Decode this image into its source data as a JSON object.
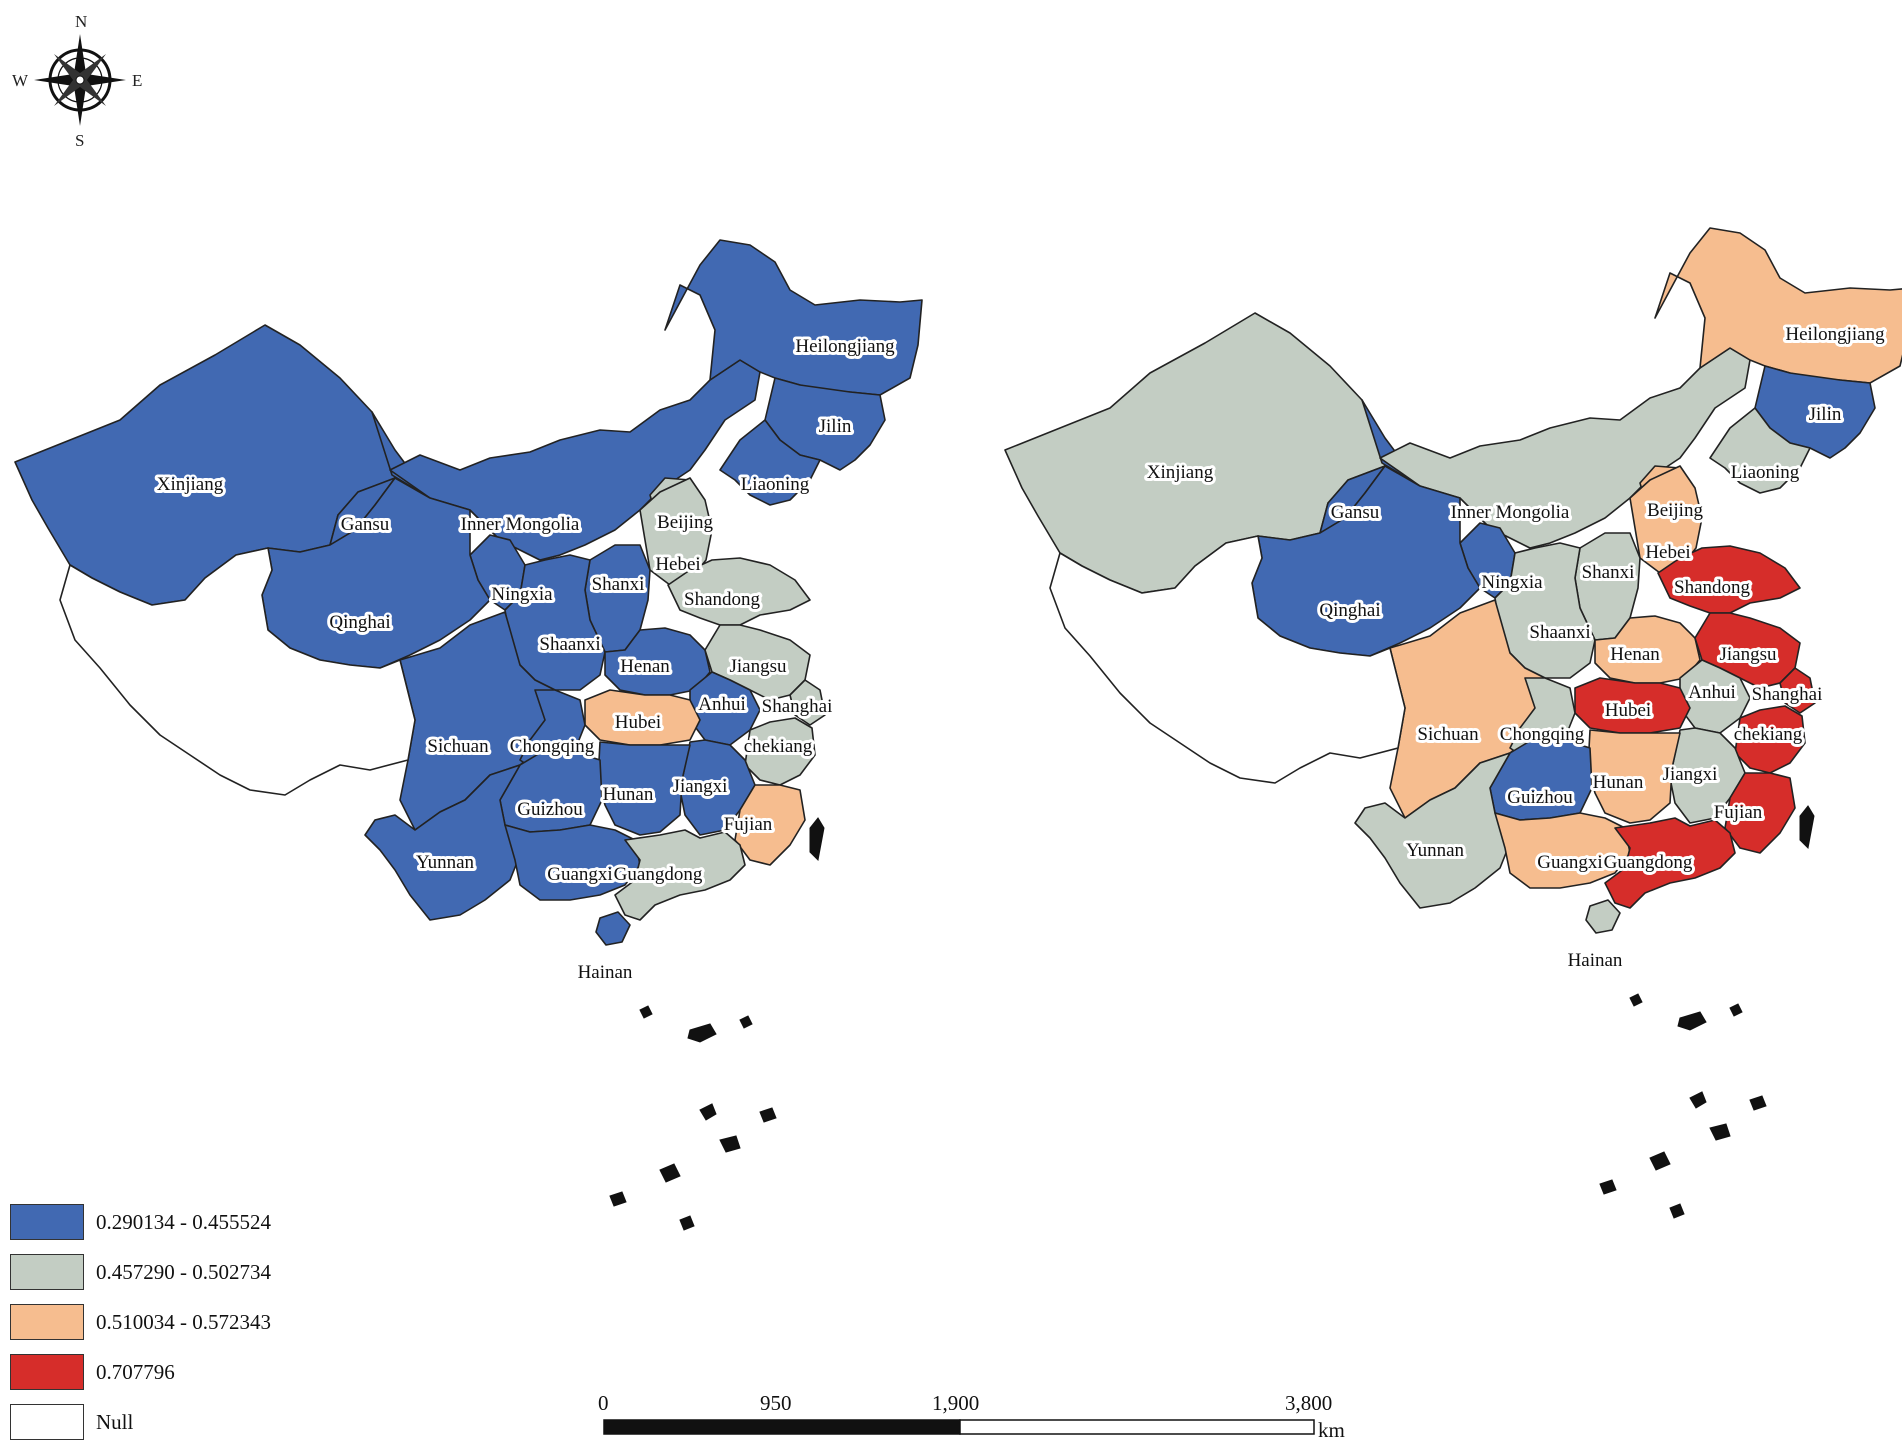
{
  "compass": {
    "n": "N",
    "s": "S",
    "e": "E",
    "w": "W"
  },
  "legend": [
    {
      "id": "c1",
      "label": "0.290134 - 0.455524",
      "color": "#4169b2"
    },
    {
      "id": "c2",
      "label": "0.457290 - 0.502734",
      "color": "#c3cdc3"
    },
    {
      "id": "c3",
      "label": "0.510034 - 0.572343",
      "color": "#f6bd8f"
    },
    {
      "id": "c4",
      "label": "0.707796",
      "color": "#d62d2a"
    },
    {
      "id": "null",
      "label": "Null",
      "color": "#ffffff"
    }
  ],
  "scale_bar": {
    "ticks": [
      "0",
      "950",
      "1,900",
      "3,800"
    ],
    "unit": "km"
  },
  "maps": {
    "left": {
      "provinces": [
        {
          "name": "Xinjiang",
          "class": "c1"
        },
        {
          "name": "Gansu",
          "class": "c1"
        },
        {
          "name": "Inner Mongolia",
          "class": "c1"
        },
        {
          "name": "Heilongjiang",
          "class": "c1"
        },
        {
          "name": "Jilin",
          "class": "c1"
        },
        {
          "name": "Liaoning",
          "class": "c1"
        },
        {
          "name": "Beijing",
          "class": "c2"
        },
        {
          "name": "Hebei",
          "class": "c2"
        },
        {
          "name": "Shandong",
          "class": "c2"
        },
        {
          "name": "Shanxi",
          "class": "c1"
        },
        {
          "name": "Ningxia",
          "class": "c1"
        },
        {
          "name": "Qinghai",
          "class": "c1"
        },
        {
          "name": "Shaanxi",
          "class": "c1"
        },
        {
          "name": "Henan",
          "class": "c1"
        },
        {
          "name": "Jiangsu",
          "class": "c2"
        },
        {
          "name": "Anhui",
          "class": "c1"
        },
        {
          "name": "Shanghai",
          "class": "c2"
        },
        {
          "name": "Hubei",
          "class": "c3"
        },
        {
          "name": "Sichuan",
          "class": "c1"
        },
        {
          "name": "Chongqing",
          "class": "c1"
        },
        {
          "name": "chekiang",
          "class": "c2"
        },
        {
          "name": "Jiangxi",
          "class": "c1"
        },
        {
          "name": "Hunan",
          "class": "c1"
        },
        {
          "name": "Guizhou",
          "class": "c1"
        },
        {
          "name": "Fujian",
          "class": "c3"
        },
        {
          "name": "Yunnan",
          "class": "c1"
        },
        {
          "name": "Guangxi",
          "class": "c1"
        },
        {
          "name": "Guangdong",
          "class": "c2"
        },
        {
          "name": "Hainan",
          "class": "c1"
        },
        {
          "name": "",
          "class": "null"
        }
      ]
    },
    "right": {
      "provinces": [
        {
          "name": "Xinjiang",
          "class": "c2"
        },
        {
          "name": "Gansu",
          "class": "c1"
        },
        {
          "name": "Inner Mongolia",
          "class": "c2"
        },
        {
          "name": "Heilongjiang",
          "class": "c3"
        },
        {
          "name": "Jilin",
          "class": "c1"
        },
        {
          "name": "Liaoning",
          "class": "c2"
        },
        {
          "name": "Beijing",
          "class": "c3"
        },
        {
          "name": "Hebei",
          "class": "c3"
        },
        {
          "name": "Shandong",
          "class": "c4"
        },
        {
          "name": "Shanxi",
          "class": "c2"
        },
        {
          "name": "Ningxia",
          "class": "c1"
        },
        {
          "name": "Qinghai",
          "class": "c1"
        },
        {
          "name": "Shaanxi",
          "class": "c2"
        },
        {
          "name": "Henan",
          "class": "c3"
        },
        {
          "name": "Jiangsu",
          "class": "c4"
        },
        {
          "name": "Anhui",
          "class": "c2"
        },
        {
          "name": "Shanghai",
          "class": "c4"
        },
        {
          "name": "Hubei",
          "class": "c4"
        },
        {
          "name": "Sichuan",
          "class": "c3"
        },
        {
          "name": "Chongqing",
          "class": "c2"
        },
        {
          "name": "chekiang",
          "class": "c4"
        },
        {
          "name": "Jiangxi",
          "class": "c2"
        },
        {
          "name": "Hunan",
          "class": "c3"
        },
        {
          "name": "Guizhou",
          "class": "c1"
        },
        {
          "name": "Fujian",
          "class": "c4"
        },
        {
          "name": "Yunnan",
          "class": "c2"
        },
        {
          "name": "Guangxi",
          "class": "c3"
        },
        {
          "name": "Guangdong",
          "class": "c4"
        },
        {
          "name": "Hainan",
          "class": "c2"
        },
        {
          "name": "",
          "class": "null"
        }
      ]
    }
  }
}
